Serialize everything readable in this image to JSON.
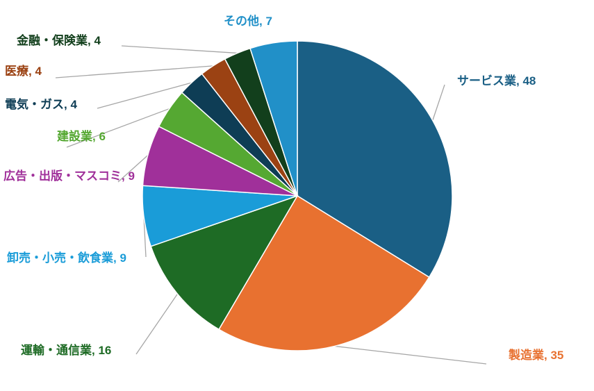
{
  "chart_data": {
    "type": "pie",
    "categories": [
      "サービス業",
      "製造業",
      "運輸・通信業",
      "卸売・小売・飲食業",
      "広告・出版・マスコミ",
      "建設業",
      "電気・ガス",
      "医療",
      "金融・保険業",
      "その他"
    ],
    "values": [
      48,
      35,
      16,
      9,
      9,
      6,
      4,
      4,
      4,
      7
    ],
    "label_separator": ", ",
    "colors": [
      "#1a5f85",
      "#e87130",
      "#1e6b25",
      "#1a9cd8",
      "#a0309a",
      "#55a832",
      "#0e3d55",
      "#9b4213",
      "#123f1c",
      "#2190c8"
    ]
  }
}
